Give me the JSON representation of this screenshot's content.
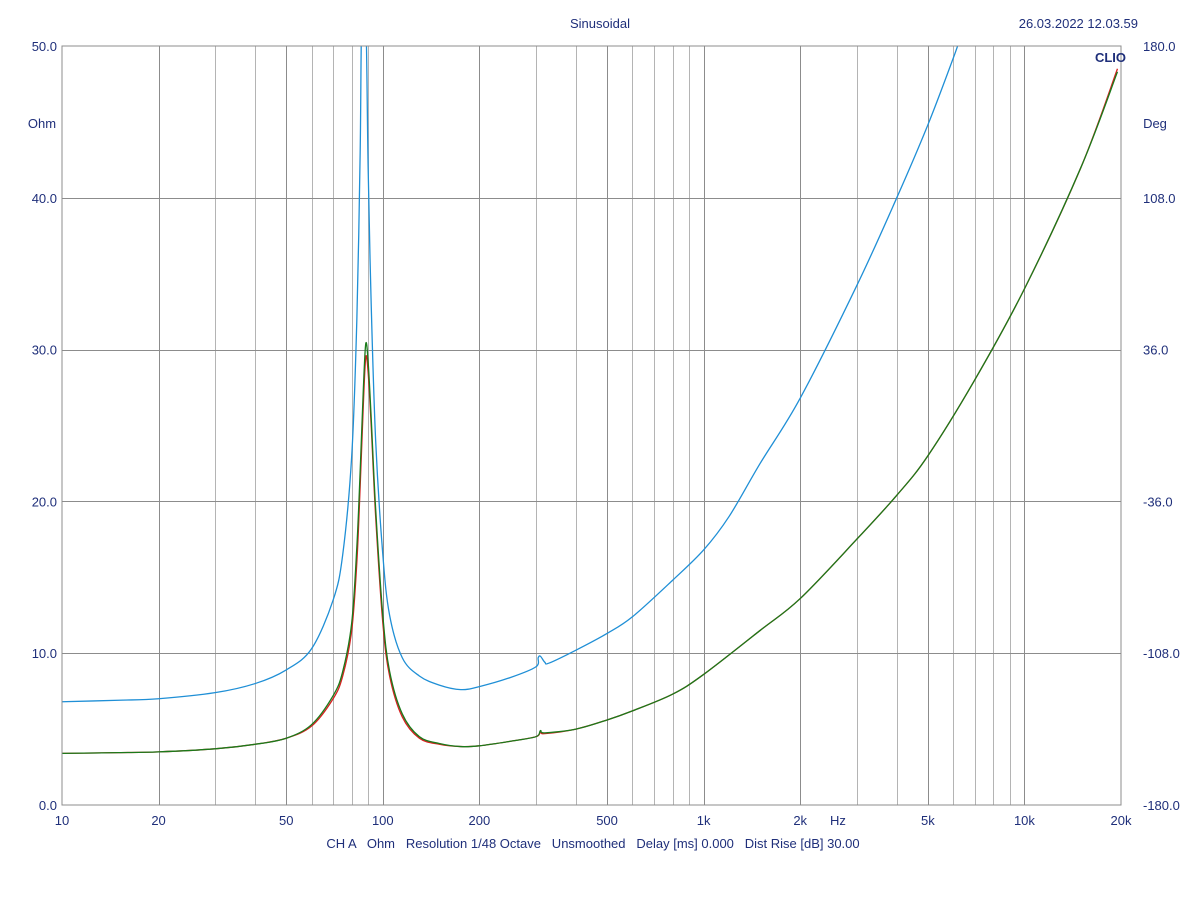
{
  "header": {
    "title": "Sinusoidal",
    "timestamp": "26.03.2022 12.03.59",
    "brand": "CLIO"
  },
  "footer": {
    "text": "CH A   Ohm   Resolution 1/48 Octave   Unsmoothed   Delay [ms] 0.000   Dist Rise [dB] 30.00"
  },
  "colors": {
    "background": "#ffffff",
    "text": "#1f2f7a",
    "grid": "#8c8c8c",
    "series_blue": "#1f8fd6",
    "series_red": "#d62020",
    "series_green": "#1a7a1a"
  },
  "chart_data": {
    "type": "line",
    "x_scale": "log",
    "xlim": [
      10,
      20000
    ],
    "ylim": [
      0,
      50
    ],
    "y2lim": [
      -180,
      180
    ],
    "ylabel": "Ohm",
    "y2label": "Deg",
    "xlabel": "Hz",
    "grid": true,
    "x_ticks": [
      {
        "value": 10,
        "label": "10"
      },
      {
        "value": 20,
        "label": "20"
      },
      {
        "value": 50,
        "label": "50"
      },
      {
        "value": 100,
        "label": "100"
      },
      {
        "value": 200,
        "label": "200"
      },
      {
        "value": 500,
        "label": "500"
      },
      {
        "value": 1000,
        "label": "1k"
      },
      {
        "value": 2000,
        "label": "2k"
      },
      {
        "value": 5000,
        "label": "5k"
      },
      {
        "value": 10000,
        "label": "10k"
      },
      {
        "value": 20000,
        "label": "20k"
      }
    ],
    "y_ticks": [
      {
        "value": 0,
        "label": "0.0"
      },
      {
        "value": 10,
        "label": "10.0"
      },
      {
        "value": 20,
        "label": "20.0"
      },
      {
        "value": 30,
        "label": "30.0"
      },
      {
        "value": 40,
        "label": "40.0"
      },
      {
        "value": 50,
        "label": "50.0"
      }
    ],
    "y2_ticks": [
      {
        "value": -180,
        "label": "-180.0"
      },
      {
        "value": -108,
        "label": "-108.0"
      },
      {
        "value": -36,
        "label": "-36.0"
      },
      {
        "value": 36,
        "label": "36.0"
      },
      {
        "value": 108,
        "label": "108.0"
      },
      {
        "value": 180,
        "label": "180.0"
      }
    ],
    "series": [
      {
        "color": "#1f8fd6",
        "points": [
          [
            10,
            6.8
          ],
          [
            15,
            6.9
          ],
          [
            20,
            7.0
          ],
          [
            30,
            7.4
          ],
          [
            40,
            8.0
          ],
          [
            50,
            8.9
          ],
          [
            60,
            10.3
          ],
          [
            70,
            13.5
          ],
          [
            75,
            16.5
          ],
          [
            80,
            23
          ],
          [
            83,
            32
          ],
          [
            85,
            43
          ],
          [
            86,
            52
          ],
          [
            88.5,
            52
          ],
          [
            90,
            42
          ],
          [
            92,
            33
          ],
          [
            95,
            24
          ],
          [
            100,
            16.5
          ],
          [
            105,
            12.5
          ],
          [
            115,
            9.7
          ],
          [
            130,
            8.5
          ],
          [
            150,
            7.9
          ],
          [
            175,
            7.6
          ],
          [
            200,
            7.8
          ],
          [
            250,
            8.4
          ],
          [
            300,
            9.1
          ],
          [
            305,
            9.7
          ],
          [
            310,
            9.8
          ],
          [
            320,
            9.4
          ],
          [
            330,
            9.35
          ],
          [
            400,
            10.2
          ],
          [
            500,
            11.3
          ],
          [
            600,
            12.4
          ],
          [
            800,
            14.8
          ],
          [
            1000,
            16.8
          ],
          [
            1200,
            19.0
          ],
          [
            1500,
            22.5
          ],
          [
            2000,
            26.8
          ],
          [
            3000,
            34.2
          ],
          [
            4000,
            40.0
          ],
          [
            5000,
            44.8
          ],
          [
            6000,
            49.2
          ],
          [
            6300,
            50.5
          ]
        ]
      },
      {
        "color": "#d62020",
        "points": [
          [
            10,
            3.4
          ],
          [
            15,
            3.45
          ],
          [
            20,
            3.5
          ],
          [
            30,
            3.7
          ],
          [
            40,
            4.0
          ],
          [
            50,
            4.4
          ],
          [
            60,
            5.2
          ],
          [
            70,
            7.0
          ],
          [
            75,
            8.5
          ],
          [
            80,
            11.5
          ],
          [
            83,
            16
          ],
          [
            85,
            21
          ],
          [
            87,
            26.5
          ],
          [
            88.5,
            29.5
          ],
          [
            90,
            28.5
          ],
          [
            92,
            25
          ],
          [
            95,
            19
          ],
          [
            100,
            12
          ],
          [
            105,
            8.5
          ],
          [
            115,
            5.8
          ],
          [
            130,
            4.4
          ],
          [
            150,
            4.0
          ],
          [
            175,
            3.85
          ],
          [
            200,
            3.9
          ],
          [
            250,
            4.2
          ],
          [
            300,
            4.5
          ],
          [
            310,
            4.8
          ],
          [
            320,
            4.7
          ],
          [
            400,
            5.0
          ],
          [
            500,
            5.6
          ],
          [
            600,
            6.2
          ],
          [
            800,
            7.3
          ],
          [
            1000,
            8.6
          ],
          [
            1500,
            11.5
          ],
          [
            2000,
            13.6
          ],
          [
            3000,
            17.5
          ],
          [
            4000,
            20.4
          ],
          [
            5000,
            23.0
          ],
          [
            7000,
            28.0
          ],
          [
            10000,
            34.0
          ],
          [
            15000,
            42.0
          ],
          [
            19500,
            48.5
          ]
        ]
      },
      {
        "color": "#1a7a1a",
        "points": [
          [
            10,
            3.4
          ],
          [
            15,
            3.45
          ],
          [
            20,
            3.5
          ],
          [
            30,
            3.7
          ],
          [
            40,
            4.0
          ],
          [
            50,
            4.4
          ],
          [
            60,
            5.3
          ],
          [
            70,
            7.2
          ],
          [
            75,
            8.8
          ],
          [
            80,
            12
          ],
          [
            83,
            17
          ],
          [
            85,
            22
          ],
          [
            87,
            27.5
          ],
          [
            88.5,
            30.4
          ],
          [
            90,
            29.2
          ],
          [
            92,
            25.5
          ],
          [
            95,
            19.5
          ],
          [
            100,
            12.5
          ],
          [
            105,
            8.8
          ],
          [
            115,
            6.0
          ],
          [
            130,
            4.5
          ],
          [
            150,
            4.05
          ],
          [
            175,
            3.85
          ],
          [
            200,
            3.9
          ],
          [
            250,
            4.2
          ],
          [
            300,
            4.5
          ],
          [
            310,
            4.9
          ],
          [
            320,
            4.75
          ],
          [
            400,
            5.0
          ],
          [
            500,
            5.6
          ],
          [
            600,
            6.2
          ],
          [
            800,
            7.3
          ],
          [
            1000,
            8.6
          ],
          [
            1500,
            11.5
          ],
          [
            2000,
            13.6
          ],
          [
            3000,
            17.5
          ],
          [
            4000,
            20.4
          ],
          [
            5000,
            23.0
          ],
          [
            7000,
            28.0
          ],
          [
            10000,
            34.0
          ],
          [
            15000,
            42.0
          ],
          [
            19500,
            48.3
          ]
        ]
      }
    ]
  }
}
